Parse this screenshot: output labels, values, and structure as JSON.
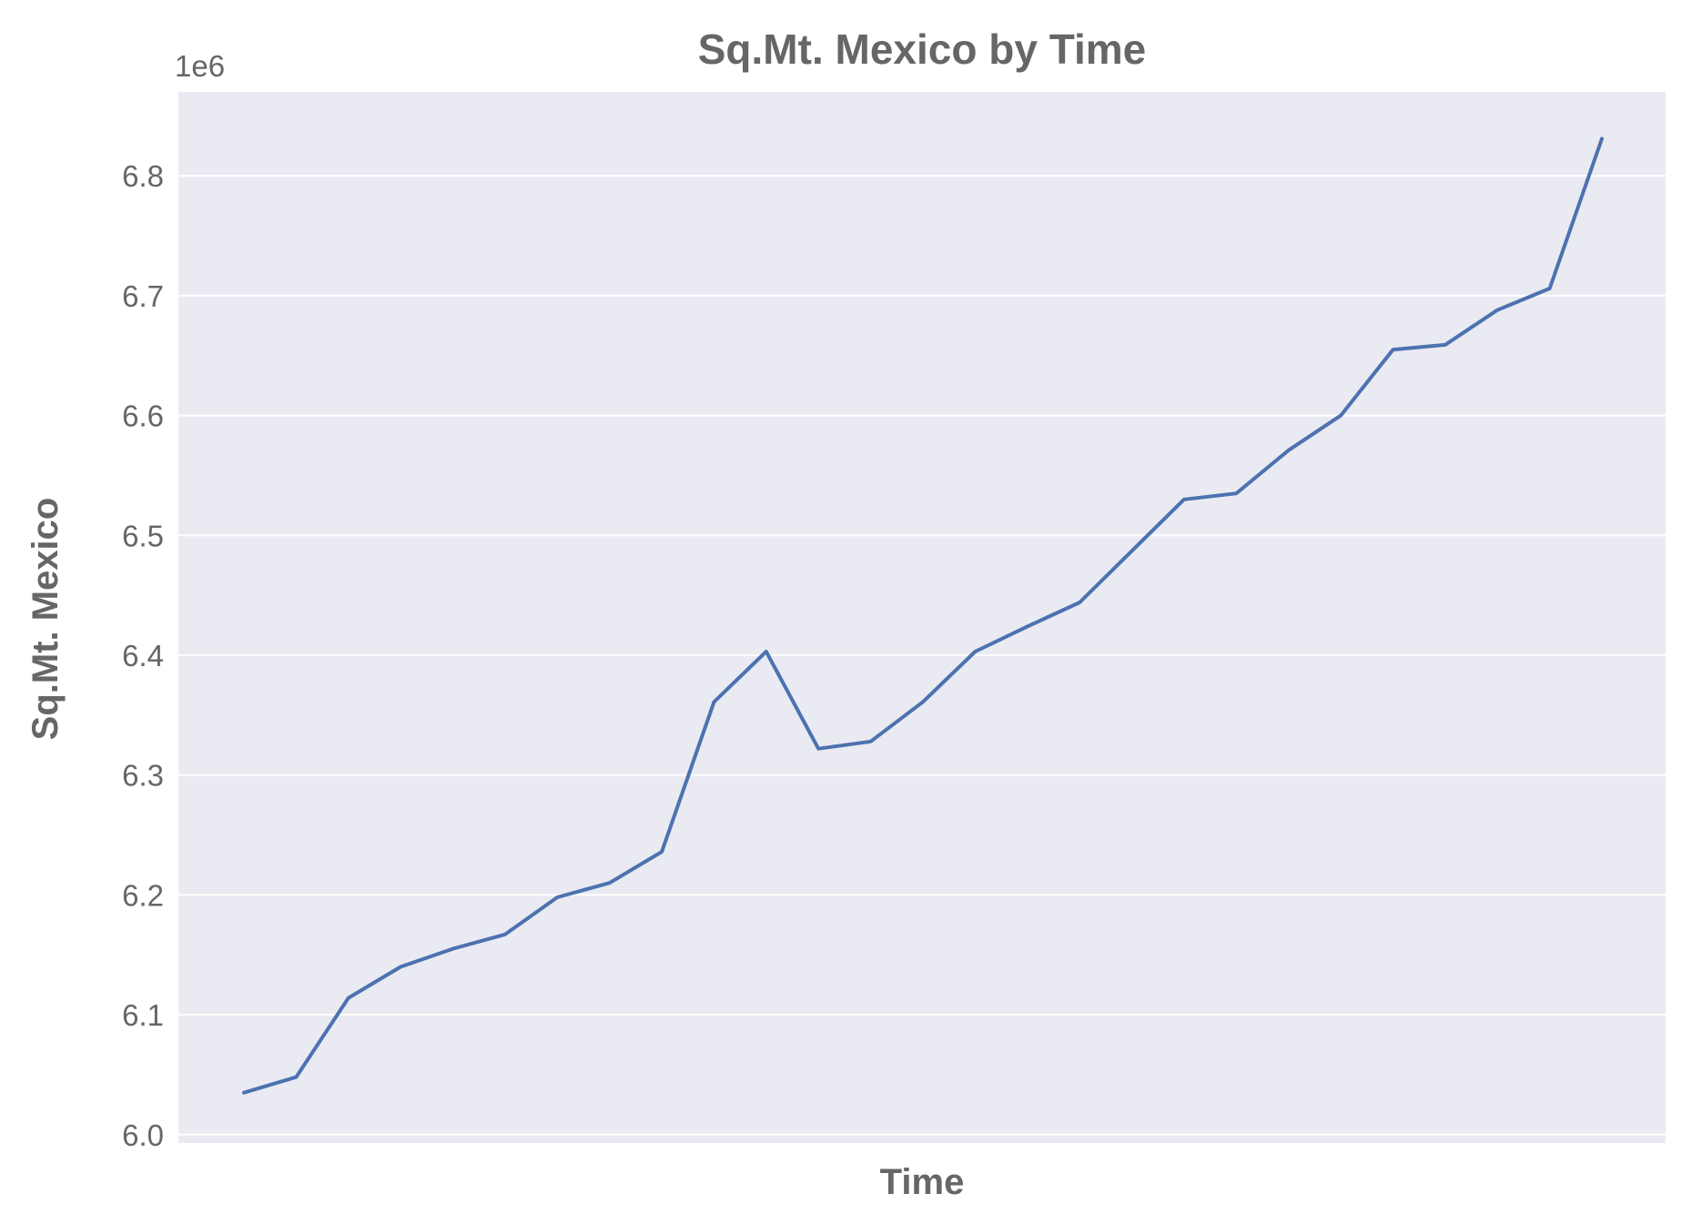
{
  "chart_data": {
    "type": "line",
    "title": "Sq.Mt. Mexico by Time",
    "xlabel": "Time",
    "ylabel": "Sq.Mt. Mexico",
    "y_offset_label": "1e6",
    "ylim": [
      5.993,
      6.87
    ],
    "y_ticks": [
      6.0,
      6.1,
      6.2,
      6.3,
      6.4,
      6.5,
      6.6,
      6.7,
      6.8
    ],
    "y_tick_labels": [
      "6.0",
      "6.1",
      "6.2",
      "6.3",
      "6.4",
      "6.5",
      "6.6",
      "6.7",
      "6.8"
    ],
    "grid": true,
    "line_color": "#4c72b0",
    "background_color": "#eaeaf2",
    "series": [
      {
        "values": [
          6.035,
          6.048,
          6.114,
          6.14,
          6.155,
          6.167,
          6.198,
          6.21,
          6.236,
          6.361,
          6.403,
          6.322,
          6.328,
          6.361,
          6.403,
          6.424,
          6.444,
          6.487,
          6.53,
          6.535,
          6.571,
          6.6,
          6.655,
          6.659,
          6.688,
          6.706,
          6.831
        ]
      }
    ]
  }
}
